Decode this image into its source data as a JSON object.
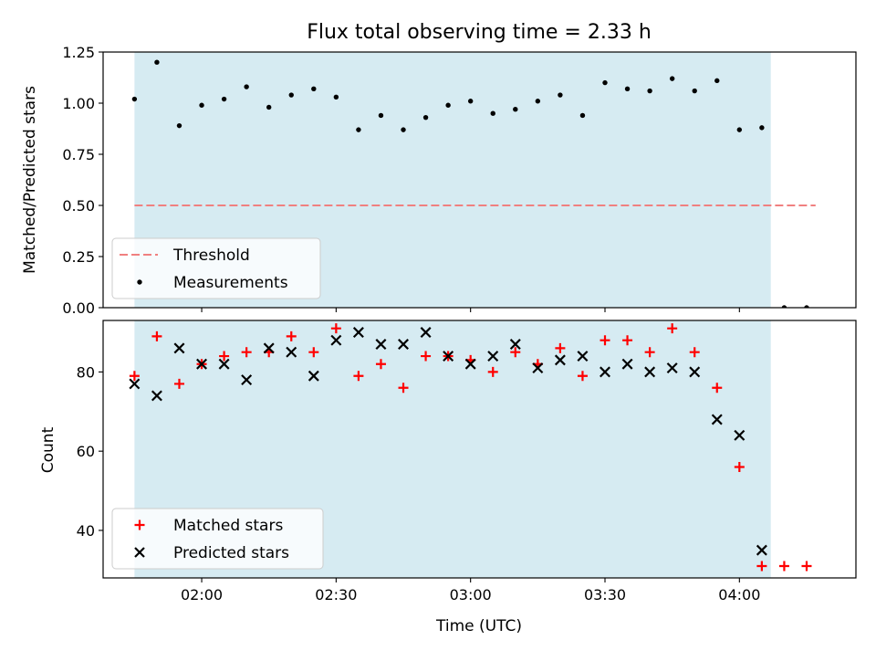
{
  "colors": {
    "shade": "#add8e6",
    "threshold": "#f08080",
    "measurement": "#000000",
    "matched": "#ff0000",
    "predicted": "#000000"
  },
  "chart_data": [
    {
      "type": "scatter",
      "title": "Flux total observing time = 2.33 h",
      "xlabel": "",
      "ylabel": "Matched/Predicted stars",
      "xlim": [
        "01:38",
        "04:26"
      ],
      "ylim": [
        0,
        1.25
      ],
      "yticks": [
        0.0,
        0.25,
        0.5,
        0.75,
        1.0,
        1.25
      ],
      "ytick_labels": [
        "0.00",
        "0.25",
        "0.50",
        "0.75",
        "1.00",
        "1.25"
      ],
      "xticks": [
        "02:00",
        "02:30",
        "03:00",
        "03:30",
        "04:00"
      ],
      "shaded_span": [
        "01:45",
        "04:07"
      ],
      "legend": {
        "placement": "lower-left",
        "entries": [
          "Threshold",
          "Measurements"
        ]
      },
      "series": [
        {
          "name": "Threshold",
          "style": "dashed-line",
          "x": [
            "01:45",
            "04:17"
          ],
          "y": [
            0.5,
            0.5
          ]
        },
        {
          "name": "Measurements",
          "style": "dot",
          "x": [
            "01:45",
            "01:50",
            "01:55",
            "02:00",
            "02:05",
            "02:10",
            "02:15",
            "02:20",
            "02:25",
            "02:30",
            "02:35",
            "02:40",
            "02:45",
            "02:50",
            "02:55",
            "03:00",
            "03:05",
            "03:10",
            "03:15",
            "03:20",
            "03:25",
            "03:30",
            "03:35",
            "03:40",
            "03:45",
            "03:50",
            "03:55",
            "04:00",
            "04:05",
            "04:10",
            "04:15",
            "04:20"
          ],
          "y": [
            1.02,
            1.2,
            0.89,
            0.99,
            1.02,
            1.08,
            0.98,
            1.04,
            1.07,
            1.03,
            0.87,
            0.94,
            0.87,
            0.93,
            0.99,
            1.01,
            0.95,
            0.97,
            1.01,
            1.04,
            0.94,
            1.1,
            1.07,
            1.06,
            1.12,
            1.06,
            1.11,
            0.87,
            0.88,
            0.0,
            0.0,
            null
          ]
        }
      ]
    },
    {
      "type": "scatter",
      "title": "",
      "xlabel": "Time (UTC)",
      "ylabel": "Count",
      "xlim": [
        "01:38",
        "04:26"
      ],
      "ylim": [
        28,
        93
      ],
      "yticks": [
        40,
        60,
        80
      ],
      "ytick_labels": [
        "40",
        "60",
        "80"
      ],
      "xticks": [
        "02:00",
        "02:30",
        "03:00",
        "03:30",
        "04:00"
      ],
      "xtick_labels": [
        "02:00",
        "02:30",
        "03:00",
        "03:30",
        "04:00"
      ],
      "shaded_span": [
        "01:45",
        "04:07"
      ],
      "legend": {
        "placement": "lower-left",
        "entries": [
          "Matched stars",
          "Predicted stars"
        ]
      },
      "series": [
        {
          "name": "Matched stars",
          "marker": "plus",
          "x": [
            "01:45",
            "01:50",
            "01:55",
            "02:00",
            "02:05",
            "02:10",
            "02:15",
            "02:20",
            "02:25",
            "02:30",
            "02:35",
            "02:40",
            "02:45",
            "02:50",
            "02:55",
            "03:00",
            "03:05",
            "03:10",
            "03:15",
            "03:20",
            "03:25",
            "03:30",
            "03:35",
            "03:40",
            "03:45",
            "03:50",
            "03:55",
            "04:00",
            "04:05",
            "04:10",
            "04:15",
            "04:20"
          ],
          "y": [
            79,
            89,
            77,
            82,
            84,
            85,
            85,
            89,
            85,
            91,
            79,
            82,
            76,
            84,
            84,
            83,
            80,
            85,
            82,
            86,
            79,
            88,
            88,
            85,
            91,
            85,
            76,
            56,
            31,
            31,
            31,
            null
          ]
        },
        {
          "name": "Predicted stars",
          "marker": "x",
          "x": [
            "01:45",
            "01:50",
            "01:55",
            "02:00",
            "02:05",
            "02:10",
            "02:15",
            "02:20",
            "02:25",
            "02:30",
            "02:35",
            "02:40",
            "02:45",
            "02:50",
            "02:55",
            "03:00",
            "03:05",
            "03:10",
            "03:15",
            "03:20",
            "03:25",
            "03:30",
            "03:35",
            "03:40",
            "03:45",
            "03:50",
            "03:55",
            "04:00",
            "04:05"
          ],
          "y": [
            77,
            74,
            86,
            82,
            82,
            78,
            86,
            85,
            79,
            88,
            90,
            87,
            87,
            90,
            84,
            82,
            84,
            87,
            81,
            83,
            84,
            80,
            82,
            80,
            81,
            80,
            68,
            64,
            35
          ]
        }
      ]
    }
  ]
}
